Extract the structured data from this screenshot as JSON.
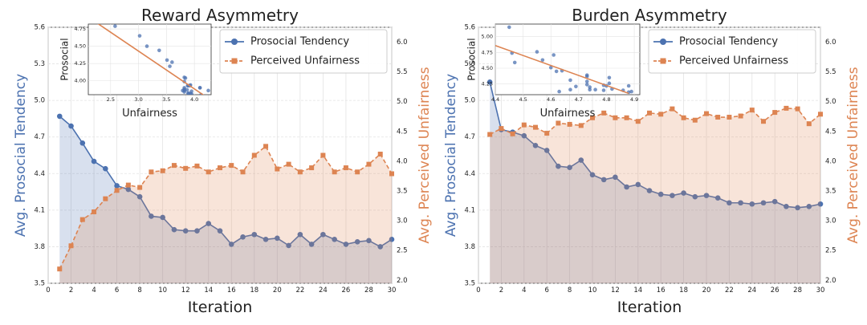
{
  "colors": {
    "prosocial": "#4c72b0",
    "unfairness": "#dd8452",
    "grid": "#e3e3e3",
    "tick_text": "#222222"
  },
  "chart_data": [
    {
      "type": "line",
      "title": "Reward Asymmetry",
      "xlabel": "Iteration",
      "ylabel_left": "Avg. Prosocial Tendency",
      "ylabel_right": "Avg. Perceived Unfairness",
      "xlim": [
        0,
        30
      ],
      "ylim_left": [
        3.5,
        5.6
      ],
      "ylim_right": [
        1.95,
        6.25
      ],
      "x_ticks": [
        "0",
        "2",
        "4",
        "6",
        "8",
        "10",
        "12",
        "14",
        "16",
        "18",
        "20",
        "22",
        "24",
        "26",
        "28",
        "30"
      ],
      "y_left_ticks": [
        "3.5",
        "3.8",
        "4.1",
        "4.4",
        "4.7",
        "5.0",
        "5.3",
        "5.6"
      ],
      "y_right_ticks": [
        "2.0",
        "2.5",
        "3.0",
        "3.5",
        "4.0",
        "4.5",
        "5.0",
        "5.5",
        "6.0"
      ],
      "legend": [
        "Prosocial Tendency",
        "Perceived Unfairness"
      ],
      "series": [
        {
          "name": "Prosocial Tendency",
          "axis": "left",
          "x": [
            1,
            2,
            3,
            4,
            5,
            6,
            7,
            8,
            9,
            10,
            11,
            12,
            13,
            14,
            15,
            16,
            17,
            18,
            19,
            20,
            21,
            22,
            23,
            24,
            25,
            26,
            27,
            28,
            29,
            30
          ],
          "values": [
            4.87,
            4.79,
            4.65,
            4.5,
            4.44,
            4.3,
            4.27,
            4.21,
            4.05,
            4.04,
            3.94,
            3.93,
            3.93,
            3.99,
            3.93,
            3.82,
            3.88,
            3.9,
            3.86,
            3.87,
            3.81,
            3.9,
            3.82,
            3.9,
            3.86,
            3.82,
            3.84,
            3.85,
            3.8,
            3.86
          ]
        },
        {
          "name": "Perceived Unfairness",
          "axis": "right",
          "x": [
            1,
            2,
            3,
            4,
            5,
            6,
            7,
            8,
            9,
            10,
            11,
            12,
            13,
            14,
            15,
            16,
            17,
            18,
            19,
            20,
            21,
            22,
            23,
            24,
            25,
            26,
            27,
            28,
            29,
            30
          ],
          "values": [
            2.19,
            2.58,
            3.02,
            3.15,
            3.37,
            3.51,
            3.6,
            3.56,
            3.82,
            3.84,
            3.93,
            3.88,
            3.92,
            3.82,
            3.89,
            3.93,
            3.82,
            4.1,
            4.25,
            3.87,
            3.95,
            3.82,
            3.89,
            4.1,
            3.82,
            3.89,
            3.82,
            3.95,
            4.12,
            3.79
          ]
        }
      ],
      "inset": {
        "type": "scatter",
        "xlabel": "Unfairness",
        "ylabel": "Prosocial",
        "xlim": [
          2.1,
          4.3
        ],
        "ylim": [
          3.8,
          4.82
        ],
        "x_ticks": [
          "2.5",
          "3.0",
          "3.5",
          "4.0"
        ],
        "y_ticks": [
          "4.00",
          "4.25",
          "4.50",
          "4.75"
        ],
        "points_x": [
          2.19,
          2.58,
          3.02,
          3.15,
          3.37,
          3.51,
          3.6,
          3.56,
          3.82,
          3.84,
          3.93,
          3.88,
          3.92,
          3.82,
          3.89,
          3.93,
          3.82,
          4.1,
          4.25,
          3.87,
          3.95,
          3.82,
          3.89,
          4.1,
          3.82,
          3.89,
          3.82,
          3.95,
          4.12,
          3.79
        ],
        "points_y": [
          4.87,
          4.79,
          4.65,
          4.5,
          4.44,
          4.3,
          4.27,
          4.21,
          4.05,
          4.04,
          3.94,
          3.93,
          3.93,
          3.99,
          3.93,
          3.82,
          3.88,
          3.9,
          3.86,
          3.87,
          3.81,
          3.9,
          3.82,
          3.9,
          3.86,
          3.82,
          3.84,
          3.85,
          3.8,
          3.86
        ],
        "fit_line": {
          "x": [
            2.1,
            4.3
          ],
          "y": [
            4.92,
            3.72
          ]
        }
      }
    },
    {
      "type": "line",
      "title": "Burden Asymmetry",
      "xlabel": "Iteration",
      "ylabel_left": "Avg. Prosocial Tendency",
      "ylabel_right": "Avg. Perceived Unfairness",
      "xlim": [
        0,
        30
      ],
      "ylim_left": [
        3.5,
        5.6
      ],
      "ylim_right": [
        1.95,
        6.25
      ],
      "x_ticks": [
        "0",
        "2",
        "4",
        "6",
        "8",
        "10",
        "12",
        "14",
        "16",
        "18",
        "20",
        "22",
        "24",
        "26",
        "28",
        "30"
      ],
      "y_left_ticks": [
        "3.5",
        "3.8",
        "4.1",
        "4.4",
        "4.7",
        "5.0",
        "5.3",
        "5.6"
      ],
      "y_right_ticks": [
        "2.0",
        "2.5",
        "3.0",
        "3.5",
        "4.0",
        "4.5",
        "5.0",
        "5.5",
        "6.0"
      ],
      "legend": [
        "Prosocial Tendency",
        "Perceived Unfairness"
      ],
      "series": [
        {
          "name": "Prosocial Tendency",
          "axis": "left",
          "x": [
            1,
            2,
            3,
            4,
            5,
            6,
            7,
            8,
            9,
            10,
            11,
            12,
            13,
            14,
            15,
            16,
            17,
            18,
            19,
            20,
            21,
            22,
            23,
            24,
            25,
            26,
            27,
            28,
            29,
            30
          ],
          "values": [
            5.15,
            4.76,
            4.74,
            4.71,
            4.63,
            4.59,
            4.46,
            4.45,
            4.51,
            4.39,
            4.35,
            4.37,
            4.29,
            4.31,
            4.26,
            4.23,
            4.22,
            4.24,
            4.21,
            4.22,
            4.2,
            4.16,
            4.16,
            4.15,
            4.16,
            4.17,
            4.13,
            4.12,
            4.13,
            4.15
          ]
        },
        {
          "name": "Perceived Unfairness",
          "axis": "right",
          "x": [
            1,
            2,
            3,
            4,
            5,
            6,
            7,
            8,
            9,
            10,
            11,
            12,
            13,
            14,
            15,
            16,
            17,
            18,
            19,
            20,
            21,
            22,
            23,
            24,
            25,
            26,
            27,
            28,
            29,
            30
          ],
          "values": [
            4.45,
            4.55,
            4.46,
            4.61,
            4.57,
            4.47,
            4.64,
            4.62,
            4.6,
            4.73,
            4.81,
            4.73,
            4.73,
            4.67,
            4.81,
            4.79,
            4.88,
            4.73,
            4.69,
            4.8,
            4.74,
            4.74,
            4.76,
            4.86,
            4.67,
            4.82,
            4.89,
            4.88,
            4.63,
            4.79
          ]
        }
      ],
      "inset": {
        "type": "scatter",
        "xlabel": "Unfairness",
        "ylabel": "Prosocial",
        "xlim": [
          4.4,
          4.92
        ],
        "ylim": [
          4.08,
          5.2
        ],
        "x_ticks": [
          "4.4",
          "4.5",
          "4.6",
          "4.7",
          "4.8",
          "4.9"
        ],
        "y_ticks": [
          "4.25",
          "4.50",
          "4.75",
          "5.00"
        ],
        "points_x": [
          4.45,
          4.55,
          4.46,
          4.61,
          4.57,
          4.47,
          4.64,
          4.62,
          4.6,
          4.73,
          4.81,
          4.73,
          4.73,
          4.67,
          4.81,
          4.79,
          4.88,
          4.73,
          4.69,
          4.8,
          4.74,
          4.74,
          4.76,
          4.86,
          4.67,
          4.82,
          4.89,
          4.88,
          4.63,
          4.79
        ],
        "points_y": [
          5.15,
          4.76,
          4.74,
          4.71,
          4.63,
          4.59,
          4.46,
          4.45,
          4.51,
          4.39,
          4.35,
          4.37,
          4.29,
          4.31,
          4.26,
          4.23,
          4.22,
          4.24,
          4.21,
          4.22,
          4.2,
          4.16,
          4.16,
          4.15,
          4.16,
          4.17,
          4.13,
          4.12,
          4.13,
          4.15
        ],
        "fit_line": {
          "x": [
            4.4,
            4.88
          ],
          "y": [
            4.86,
            4.1
          ]
        }
      }
    }
  ]
}
